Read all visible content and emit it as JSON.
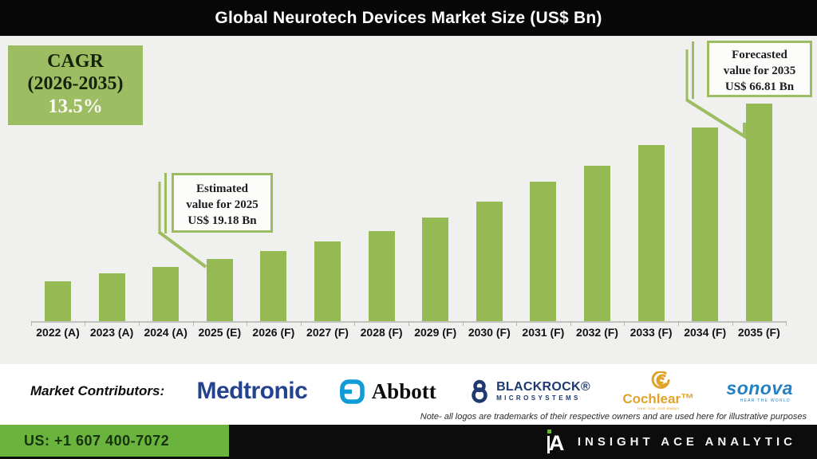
{
  "header": {
    "title": "Global Neurotech Devices Market Size (US$ Bn)"
  },
  "cagr_box": {
    "title": "CAGR",
    "range": "(2026-2035)",
    "value": "13.5%"
  },
  "callout_2025": {
    "line1": "Estimated",
    "line2": "value for 2025",
    "line3": "US$ 19.18 Bn"
  },
  "callout_2035": {
    "line1": "Forecasted",
    "line2": "value for 2035",
    "line3": "US$ 66.81 Bn"
  },
  "chart_data": {
    "type": "bar",
    "title": "Global Neurotech Devices Market Size (US$ Bn)",
    "unit": "US$ Bn",
    "categories": [
      "2022 (A)",
      "2023 (A)",
      "2024 (A)",
      "2025 (E)",
      "2026 (F)",
      "2027 (F)",
      "2028 (F)",
      "2029 (F)",
      "2030 (F)",
      "2031 (F)",
      "2032 (F)",
      "2033 (F)",
      "2034 (F)",
      "2035 (F)"
    ],
    "values": [
      12.2,
      14.8,
      16.6,
      19.18,
      21.5,
      24.4,
      27.7,
      31.7,
      36.8,
      42.8,
      47.8,
      54.0,
      59.4,
      66.81
    ],
    "labeled_points": {
      "2025 (E)": 19.18,
      "2035 (F)": 66.81
    },
    "cagr_2026_2035_pct": 13.5,
    "bar_color": "#95ba53",
    "ylim": [
      0,
      72
    ],
    "grid": false,
    "legend": "none",
    "xlabel": "",
    "ylabel": "US$ Bn"
  },
  "contributors": {
    "label": "Market Contributors:",
    "logos": [
      {
        "name": "Medtronic",
        "text": "Medtronic",
        "color": "#24438f"
      },
      {
        "name": "Abbott",
        "text": "Abbott",
        "icon_color": "#0e9bd8"
      },
      {
        "name": "Blackrock Microsystems",
        "line1": "BLACKROCK®",
        "line2": "MICROSYSTEMS",
        "color": "#1e3a6e"
      },
      {
        "name": "Cochlear",
        "text": "Cochlear™",
        "tagline": "Hear now. And always",
        "color": "#dfa32a"
      },
      {
        "name": "Sonova",
        "text": "sonova",
        "tagline": "HEAR THE WORLD",
        "color": "#2380c2"
      }
    ]
  },
  "note": "Note- all logos are trademarks of their respective owners and are used here for illustrative purposes",
  "footer": {
    "phone": "US: +1 607 400-7072",
    "brand": "INSIGHT ACE ANALYTIC",
    "phone_bg": "#6ab33d"
  }
}
